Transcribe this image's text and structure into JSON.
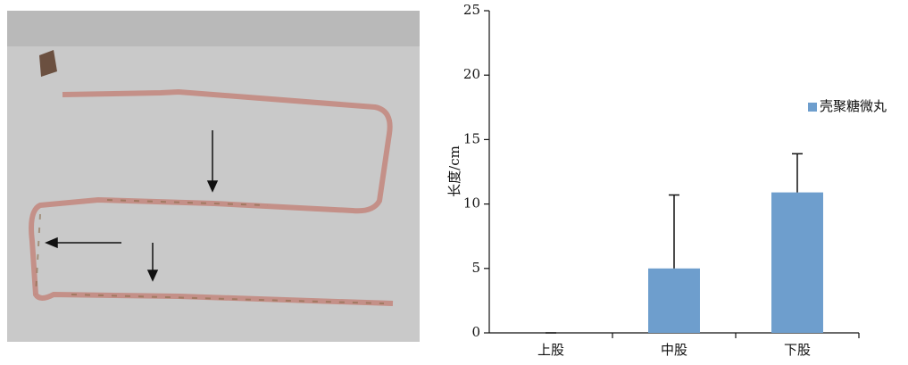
{
  "chart_data": {
    "type": "bar",
    "y_label": "长度/cm",
    "categories": [
      "上股",
      "中股",
      "下股"
    ],
    "series": [
      {
        "name": "壳聚糖微丸",
        "color": "#6e9ecd",
        "values": [
          0,
          5,
          10.9
        ],
        "errors": [
          0,
          5.7,
          3.0
        ]
      }
    ],
    "ylim": [
      0,
      25
    ],
    "yticks": [
      0,
      5,
      10,
      15,
      20,
      25
    ],
    "legend": "right"
  }
}
